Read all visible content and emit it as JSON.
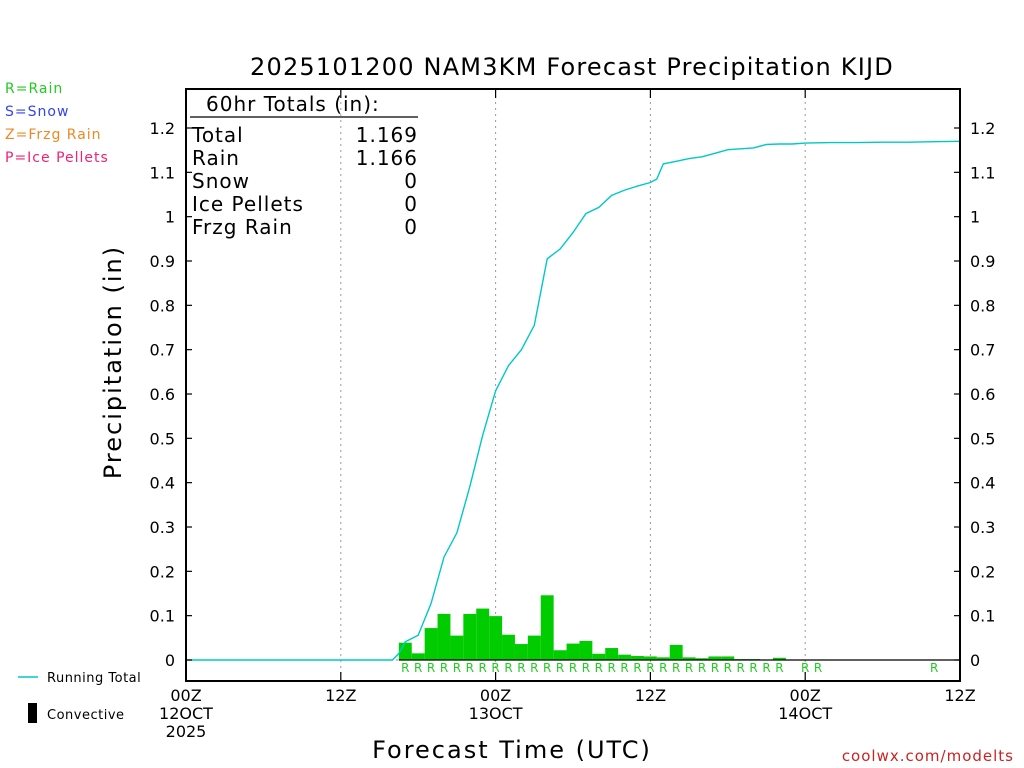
{
  "chart_data": {
    "type": "bar",
    "title": "2025101200 NAM3KM Forecast Precipitation KIJD",
    "xlabel": "Forecast Time (UTC)",
    "ylabel": "Precipitation (in)",
    "ylim": [
      0,
      1.25
    ],
    "xlim_hours": [
      0,
      60
    ],
    "y_ticks": [
      0,
      0.1,
      0.2,
      0.3,
      0.4,
      0.5,
      0.6,
      0.7,
      0.8,
      0.9,
      1,
      1.1,
      1.2
    ],
    "y_tick_labels": [
      "0",
      "0.1",
      "0.2",
      "0.3",
      "0.4",
      "0.5",
      "0.6",
      "0.7",
      "0.8",
      "0.9",
      "1",
      "1.1",
      "1.2"
    ],
    "x_ticks": [
      {
        "hour": 0,
        "lines": [
          "00Z",
          "12OCT",
          "2025"
        ]
      },
      {
        "hour": 12,
        "lines": [
          "12Z"
        ]
      },
      {
        "hour": 24,
        "lines": [
          "00Z",
          "13OCT"
        ]
      },
      {
        "hour": 36,
        "lines": [
          "12Z"
        ]
      },
      {
        "hour": 48,
        "lines": [
          "00Z",
          "14OCT"
        ]
      },
      {
        "hour": 60,
        "lines": [
          "12Z"
        ]
      }
    ],
    "grid_hours": [
      12,
      24,
      36,
      48
    ],
    "series": [
      {
        "name": "Hourly Rain (in)",
        "kind": "bar",
        "color": "#00cc00",
        "hours": [
          17,
          18,
          19,
          20,
          21,
          22,
          23,
          24,
          25,
          26,
          27,
          28,
          29,
          30,
          31,
          32,
          33,
          34,
          35,
          36,
          37,
          38,
          39,
          40,
          41,
          42,
          43,
          44,
          45,
          46
        ],
        "values": [
          0.039,
          0.015,
          0.072,
          0.104,
          0.055,
          0.104,
          0.116,
          0.099,
          0.057,
          0.036,
          0.055,
          0.146,
          0.022,
          0.037,
          0.043,
          0.014,
          0.027,
          0.012,
          0.009,
          0.008,
          0.006,
          0.034,
          0.006,
          0.004,
          0.008,
          0.008,
          0.002,
          0.002,
          0.001,
          0.005
        ]
      },
      {
        "name": "Running Total",
        "kind": "line",
        "color": "#00c8c8",
        "hours": [
          0,
          16,
          16.5,
          17,
          18,
          19,
          20,
          21,
          22,
          23,
          24,
          25,
          26,
          27,
          28,
          29,
          30,
          31,
          32,
          33,
          34,
          35,
          36,
          36.5,
          37,
          38,
          39,
          40,
          41,
          42,
          43,
          44,
          45,
          46,
          47,
          48,
          50,
          52,
          54,
          56,
          58,
          60
        ],
        "values": [
          0,
          0,
          0.015,
          0.041,
          0.056,
          0.128,
          0.232,
          0.287,
          0.391,
          0.507,
          0.607,
          0.664,
          0.7,
          0.755,
          0.905,
          0.927,
          0.964,
          1.007,
          1.021,
          1.048,
          1.06,
          1.069,
          1.077,
          1.085,
          1.119,
          1.125,
          1.131,
          1.135,
          1.143,
          1.151,
          1.153,
          1.155,
          1.163,
          1.164,
          1.164,
          1.166,
          1.167,
          1.167,
          1.168,
          1.168,
          1.169,
          1.17
        ]
      }
    ],
    "precip_type_marks": {
      "label": "R",
      "color": "#22cc22",
      "hours": [
        17,
        18,
        19,
        20,
        21,
        22,
        23,
        24,
        25,
        26,
        27,
        28,
        29,
        30,
        31,
        32,
        33,
        34,
        35,
        36,
        37,
        38,
        39,
        40,
        41,
        42,
        43,
        44,
        45,
        46,
        48,
        49,
        58
      ]
    },
    "totals_box": {
      "header": "60hr Totals (in):",
      "rows": [
        {
          "label": "Total",
          "value": "1.169"
        },
        {
          "label": "Rain",
          "value": "1.166"
        },
        {
          "label": "Snow",
          "value": "0"
        },
        {
          "label": "Ice Pellets",
          "value": "0"
        },
        {
          "label": "Frzg Rain",
          "value": "0"
        }
      ]
    }
  },
  "type_legend": [
    {
      "text": "R=Rain",
      "color": "#22cc22"
    },
    {
      "text": "S=Snow",
      "color": "#3344ee"
    },
    {
      "text": "Z=Frzg Rain",
      "color": "#ee8822"
    },
    {
      "text": "P=Ice Pellets",
      "color": "#ee2277"
    }
  ],
  "footer_legend": {
    "running_total": "Running Total",
    "convective": "Convective"
  },
  "credit": {
    "text": "coolwx.com/modelts",
    "color": "#cc2222"
  }
}
